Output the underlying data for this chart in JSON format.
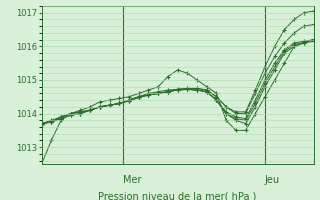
{
  "background_color": "#d8f0d8",
  "grid_color": "#b0d8b0",
  "line_color": "#2d6e2d",
  "marker": "+",
  "ylabel_ticks": [
    1013,
    1014,
    1015,
    1016,
    1017
  ],
  "ylim": [
    1012.5,
    1017.2
  ],
  "xlabel": "Pression niveau de la mer( hPa )",
  "day_labels": [
    "Mer",
    "Jeu"
  ],
  "day_positions": [
    0.3,
    0.82
  ],
  "series": [
    [
      1012.5,
      1013.2,
      1013.8,
      1014.0,
      1014.1,
      1014.2,
      1014.35,
      1014.4,
      1014.45,
      1014.5,
      1014.6,
      1014.7,
      1014.8,
      1015.1,
      1015.3,
      1015.2,
      1015.0,
      1014.8,
      1014.6,
      1013.8,
      1013.5,
      1013.5,
      1014.0,
      1014.5,
      1015.0,
      1015.5,
      1016.0,
      1016.1,
      1016.15
    ],
    [
      1013.7,
      1013.8,
      1013.9,
      1014.0,
      1014.05,
      1014.1,
      1014.2,
      1014.25,
      1014.3,
      1014.4,
      1014.5,
      1014.6,
      1014.65,
      1014.7,
      1014.72,
      1014.72,
      1014.7,
      1014.65,
      1014.4,
      1014.0,
      1013.8,
      1013.7,
      1014.2,
      1014.8,
      1015.3,
      1015.8,
      1016.0,
      1016.1,
      1016.2
    ],
    [
      1013.7,
      1013.75,
      1013.9,
      1014.0,
      1014.05,
      1014.1,
      1014.2,
      1014.25,
      1014.3,
      1014.4,
      1014.5,
      1014.55,
      1014.6,
      1014.65,
      1014.7,
      1014.72,
      1014.7,
      1014.65,
      1014.4,
      1014.0,
      1013.85,
      1013.8,
      1014.3,
      1014.9,
      1015.4,
      1015.85,
      1016.05,
      1016.12,
      1016.2
    ],
    [
      1013.7,
      1013.75,
      1013.9,
      1014.0,
      1014.05,
      1014.1,
      1014.2,
      1014.25,
      1014.3,
      1014.4,
      1014.5,
      1014.55,
      1014.6,
      1014.65,
      1014.7,
      1014.72,
      1014.7,
      1014.65,
      1014.4,
      1014.05,
      1013.9,
      1013.85,
      1014.4,
      1015.0,
      1015.5,
      1015.9,
      1016.1,
      1016.15,
      1016.2
    ],
    [
      1013.7,
      1013.75,
      1013.85,
      1013.95,
      1014.0,
      1014.1,
      1014.2,
      1014.25,
      1014.3,
      1014.38,
      1014.48,
      1014.55,
      1014.6,
      1014.65,
      1014.72,
      1014.75,
      1014.75,
      1014.7,
      1014.5,
      1014.2,
      1014.0,
      1014.0,
      1014.6,
      1015.2,
      1015.7,
      1016.1,
      1016.4,
      1016.6,
      1016.65
    ],
    [
      1013.7,
      1013.75,
      1013.85,
      1013.95,
      1014.0,
      1014.1,
      1014.2,
      1014.25,
      1014.3,
      1014.38,
      1014.48,
      1014.55,
      1014.6,
      1014.65,
      1014.72,
      1014.75,
      1014.75,
      1014.7,
      1014.5,
      1014.2,
      1014.05,
      1014.05,
      1014.7,
      1015.4,
      1016.0,
      1016.5,
      1016.8,
      1017.0,
      1017.05
    ]
  ]
}
